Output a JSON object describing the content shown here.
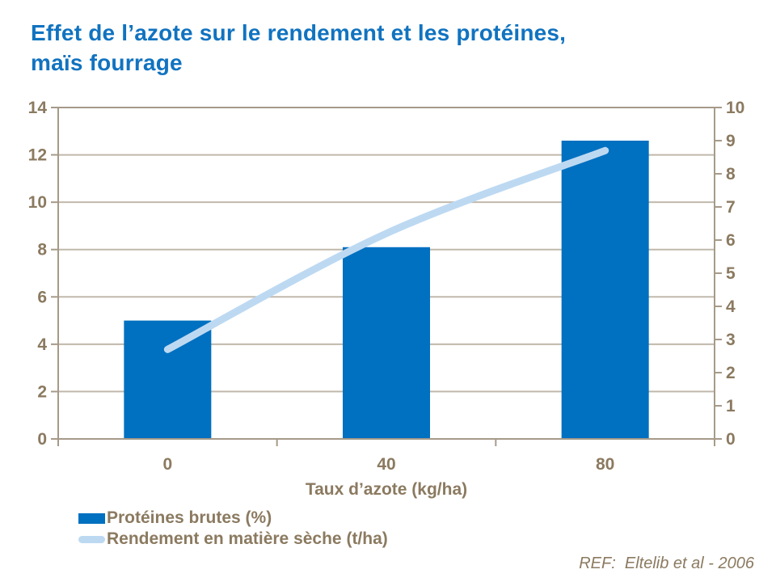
{
  "title": "Effet de l’azote sur le rendement et les protéines,\nmaïs fourrage",
  "chart_data": {
    "type": "combo",
    "title": "Effet de l’azote sur le rendement et les protéines, maïs fourrage",
    "categories": [
      "0",
      "40",
      "80"
    ],
    "xlabel": "Taux d’azote (kg/ha)",
    "left_axis": {
      "min": 0,
      "max": 14,
      "step": 2,
      "ticks": [
        0,
        2,
        4,
        6,
        8,
        10,
        12,
        14
      ]
    },
    "right_axis": {
      "min": 0,
      "max": 10,
      "step": 1,
      "ticks": [
        0,
        1,
        2,
        3,
        4,
        5,
        6,
        7,
        8,
        9,
        10
      ]
    },
    "grid": true,
    "legend_position": "bottom-left",
    "series": [
      {
        "name": "Protéines brutes (%)",
        "type": "bar",
        "axis": "left",
        "color": "#0070C0",
        "values": [
          5.0,
          8.1,
          12.6
        ]
      },
      {
        "name": "Rendement en matière sèche (t/ha)",
        "type": "line",
        "axis": "right",
        "color": "#BDD9F2",
        "smooth": true,
        "line_width": 9,
        "values": [
          2.7,
          6.2,
          8.7
        ]
      }
    ]
  },
  "reference": "REF:  Eltelib et al - 2006",
  "colors": {
    "title_text": "#1173C0",
    "axis_text": "#8B7A60",
    "legend_text": "#8B7A60",
    "reference_text": "#8B7A60",
    "axis_line": "#A69A89",
    "gridline": "#C0B8AB",
    "background": "#FFFFFF"
  }
}
